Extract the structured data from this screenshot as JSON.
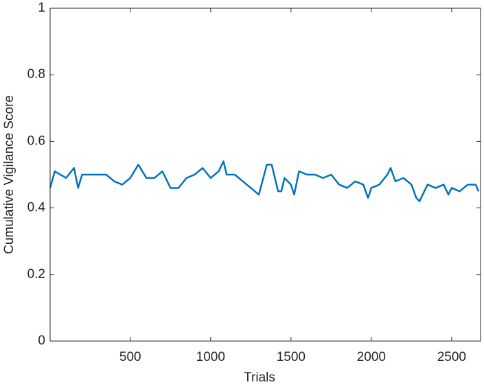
{
  "chart_data": {
    "type": "line",
    "xlabel": "Trials",
    "ylabel": "Cumulative Vigilance Score",
    "xlim": [
      1,
      2680
    ],
    "ylim": [
      0,
      1
    ],
    "xticks": [
      500,
      1000,
      1500,
      2000,
      2500
    ],
    "yticks": [
      0,
      0.2,
      0.4,
      0.6,
      0.8,
      1
    ],
    "grid": false,
    "box": true,
    "series": [
      {
        "color": "#0072bd",
        "x": [
          1,
          30,
          100,
          150,
          175,
          200,
          300,
          350,
          400,
          450,
          500,
          550,
          600,
          650,
          700,
          750,
          800,
          850,
          900,
          950,
          1000,
          1050,
          1080,
          1100,
          1150,
          1200,
          1250,
          1300,
          1350,
          1380,
          1420,
          1440,
          1460,
          1500,
          1520,
          1550,
          1600,
          1650,
          1700,
          1750,
          1800,
          1850,
          1900,
          1950,
          1980,
          2000,
          2050,
          2100,
          2120,
          2150,
          2200,
          2250,
          2280,
          2300,
          2350,
          2400,
          2450,
          2480,
          2500,
          2550,
          2600,
          2650,
          2667
        ],
        "values": [
          0.46,
          0.51,
          0.49,
          0.52,
          0.46,
          0.5,
          0.5,
          0.5,
          0.48,
          0.47,
          0.49,
          0.53,
          0.49,
          0.49,
          0.51,
          0.46,
          0.46,
          0.49,
          0.5,
          0.52,
          0.49,
          0.51,
          0.54,
          0.5,
          0.5,
          0.48,
          0.46,
          0.44,
          0.53,
          0.53,
          0.45,
          0.45,
          0.49,
          0.47,
          0.44,
          0.51,
          0.5,
          0.5,
          0.49,
          0.5,
          0.47,
          0.46,
          0.48,
          0.47,
          0.43,
          0.46,
          0.47,
          0.5,
          0.52,
          0.48,
          0.49,
          0.47,
          0.43,
          0.42,
          0.47,
          0.46,
          0.47,
          0.44,
          0.46,
          0.45,
          0.47,
          0.47,
          0.45
        ]
      }
    ]
  }
}
